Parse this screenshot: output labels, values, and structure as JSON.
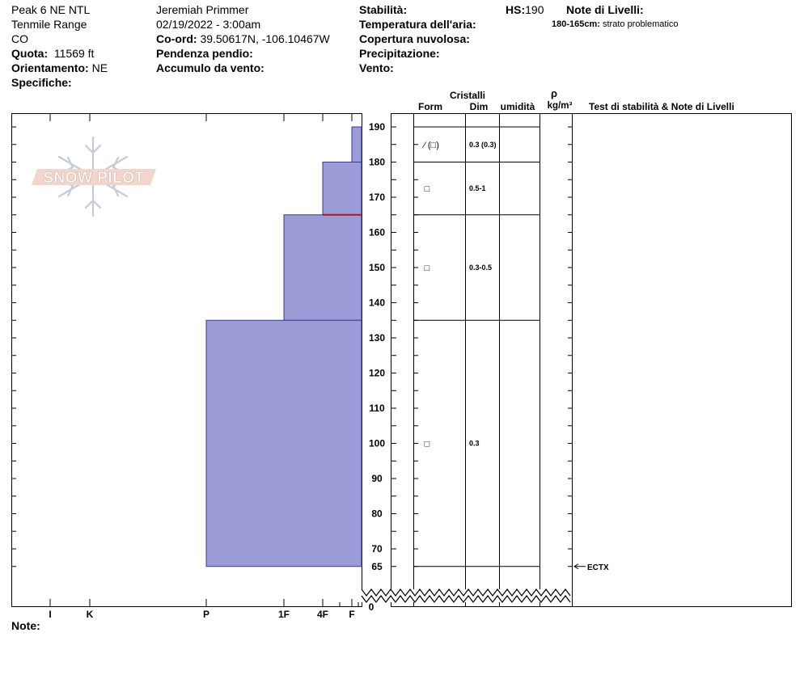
{
  "header": {
    "location": "Peak 6 NE NTL",
    "range": "Tenmile Range",
    "state": "CO",
    "elevation_label": "Quota:",
    "elevation_value": "11569 ft",
    "aspect_label": "Orientamento:",
    "aspect_value": "NE",
    "specifics_label": "Specifiche:",
    "observer": "Jeremiah Primmer",
    "datetime": "02/19/2022 - 3:00am",
    "coord_label": "Co-ord:",
    "coord_value": "39.50617N, -106.10467W",
    "slope_label": "Pendenza pendio:",
    "wind_loading_label": "Accumulo da vento:",
    "stability_label": "Stabilità:",
    "air_temp_label": "Temperatura dell'aria:",
    "cloud_label": "Copertura nuvolosa:",
    "precip_label": "Precipitazione:",
    "wind_label": "Vento:",
    "hs_label": "HS:",
    "hs_value": "190",
    "layer_notes_label": "Note di Livelli:",
    "layer_note_range": "180-165cm:",
    "layer_note_text": "strato problematico",
    "notes_label": "Note:"
  },
  "columns": {
    "crystals": "Cristalli",
    "form": "Form",
    "dim": "Dim",
    "moisture": "umidità",
    "rho": "ρ",
    "density_unit": "kg/m³",
    "stability_notes": "Test di stabilità & Note di Livelli"
  },
  "logo_text": "SNOW PILOT",
  "chart_data": {
    "type": "snow-profile",
    "hs_cm": 190,
    "y_range_cm": [
      65,
      190
    ],
    "y_ticks": [
      190,
      180,
      170,
      160,
      150,
      140,
      130,
      120,
      110,
      100,
      90,
      80,
      70,
      65
    ],
    "y_break_label": "0",
    "hardness_scale": [
      "I",
      "K",
      "P",
      "1F",
      "4F",
      "F"
    ],
    "layers": [
      {
        "top": 190,
        "bottom": 180,
        "hardness": "F",
        "form": "⁄ (□)",
        "size": "0.3 (0.3)"
      },
      {
        "top": 180,
        "bottom": 165,
        "hardness": "4F",
        "form": "□",
        "size": "0.5-1"
      },
      {
        "top": 165,
        "bottom": 135,
        "hardness": "1F",
        "form": "□",
        "size": "0.3-0.5"
      },
      {
        "top": 135,
        "bottom": 65,
        "hardness": "P",
        "form": "□",
        "size": "0.3"
      }
    ],
    "problem_layer_boundary_cm": 165,
    "stability_tests": [
      {
        "depth": 65,
        "label": "ECTX"
      }
    ],
    "colors": {
      "layer_fill": "#9b9bd7",
      "layer_stroke": "#3a3a8c",
      "problem_line": "#b01818"
    }
  }
}
